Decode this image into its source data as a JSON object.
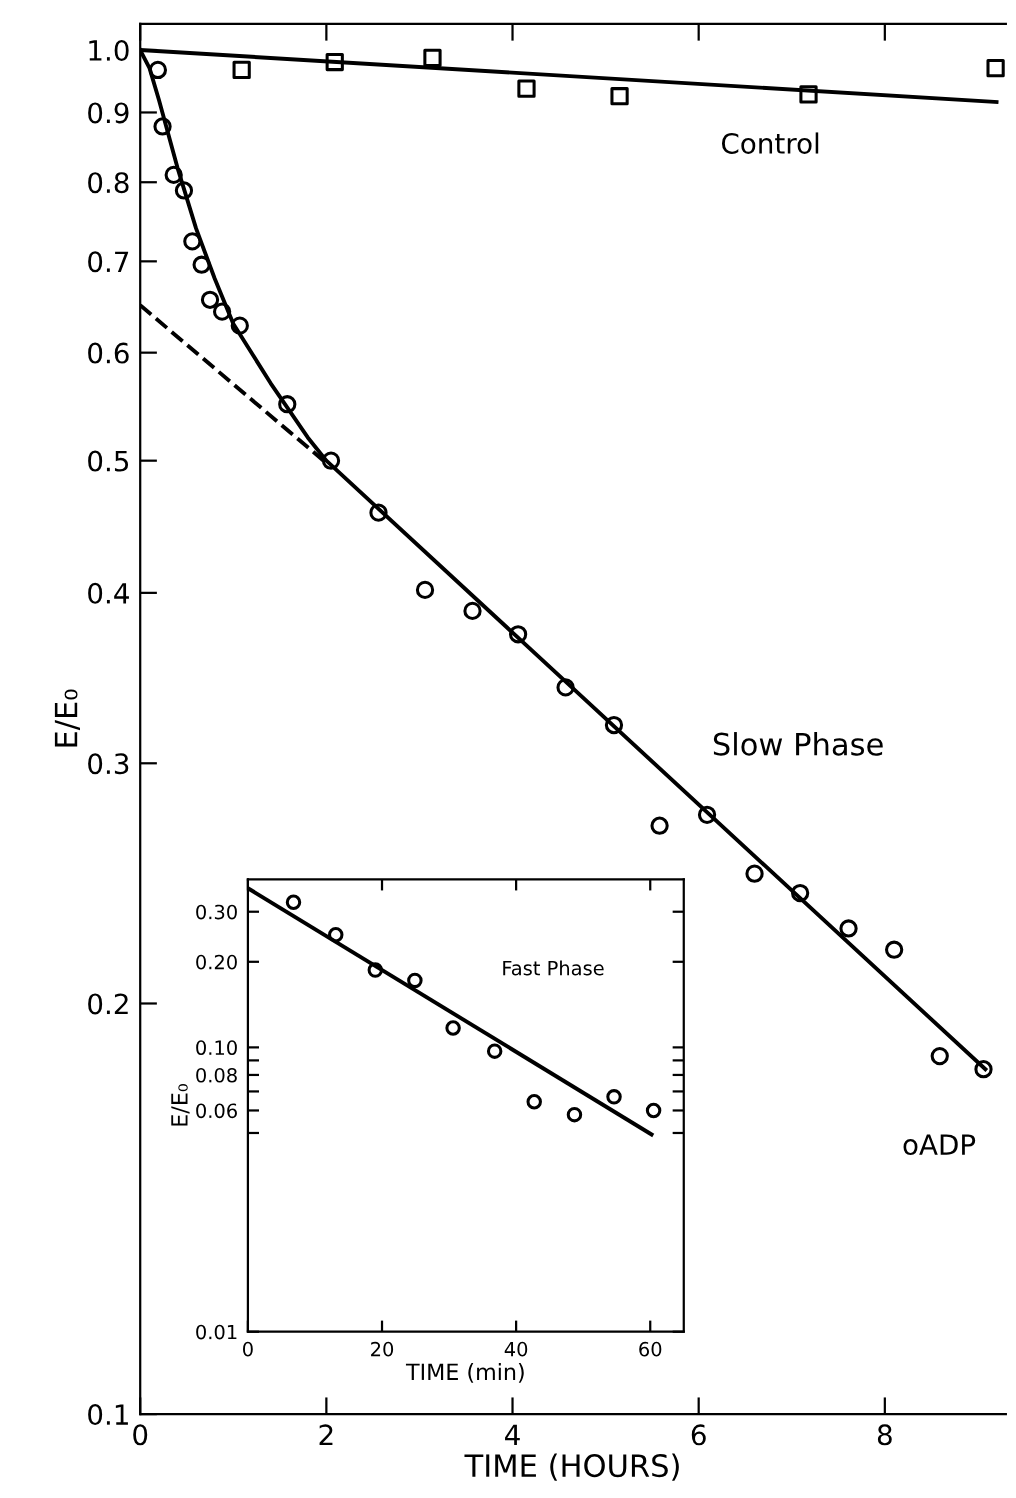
{
  "chart_data": [
    {
      "type": "scatter",
      "xlabel": "TIME (HOURS)",
      "ylabel": "E/E₀",
      "log": "y",
      "xlim": [
        0,
        9.3
      ],
      "ylim": [
        0.1,
        1.045
      ],
      "xticks": [
        0,
        2,
        4,
        6,
        8
      ],
      "yticks": [
        0.1,
        0.2,
        0.3,
        0.4,
        0.5,
        0.6,
        0.7,
        0.8,
        0.9,
        {
          "value": 1.0,
          "label": "1.0"
        }
      ],
      "grid": false,
      "annotations": [
        "Slow Phase"
      ],
      "series": [
        {
          "name": "Control",
          "marker": "square",
          "color": "#000000",
          "x": [
            1.09,
            2.09,
            3.14,
            4.15,
            5.15,
            7.18,
            9.19
          ],
          "values": [
            0.967,
            0.98,
            0.987,
            0.937,
            0.925,
            0.928,
            0.97
          ]
        },
        {
          "type": "line",
          "marker": "none",
          "line_style": "solid",
          "color": "#000000",
          "x": [
            0,
            9.2
          ],
          "values": [
            1.0,
            0.916
          ]
        },
        {
          "name": "oADP",
          "marker": "circle",
          "color": "#000000",
          "x": [
            0.19,
            0.24,
            0.36,
            0.47,
            0.56,
            0.66,
            0.75,
            0.88,
            1.07,
            1.58,
            2.05,
            2.56,
            3.06,
            3.57,
            4.06,
            4.57,
            5.09,
            5.58,
            6.09,
            6.6,
            7.09,
            7.61,
            8.1,
            8.59,
            9.06
          ],
          "values": [
            0.967,
            0.879,
            0.81,
            0.789,
            0.724,
            0.696,
            0.656,
            0.643,
            0.628,
            0.55,
            0.5,
            0.458,
            0.402,
            0.388,
            0.373,
            0.341,
            0.32,
            0.27,
            0.275,
            0.249,
            0.241,
            0.227,
            0.219,
            0.183,
            0.179
          ]
        },
        {
          "type": "line",
          "marker": "none",
          "line_style": "solid",
          "color": "#000000",
          "x": [
            0,
            0.1,
            0.2,
            0.4,
            0.6,
            0.8,
            1.0,
            1.4,
            1.8,
            2.0,
            9.08
          ],
          "values": [
            1.0,
            0.97,
            0.92,
            0.82,
            0.74,
            0.68,
            0.63,
            0.57,
            0.52,
            0.5,
            0.179
          ]
        },
        {
          "type": "line",
          "marker": "none",
          "line_style": "dashed",
          "color": "#000000",
          "x": [
            0,
            1.97
          ],
          "values": [
            0.65,
            0.5
          ]
        }
      ]
    },
    {
      "type": "scatter",
      "xlabel": "TIME (min)",
      "ylabel": "E/E₀",
      "log": "y",
      "xlim": [
        0,
        65
      ],
      "ylim": [
        0.01,
        0.39
      ],
      "xticks": [
        0,
        20,
        40,
        60
      ],
      "yticks": [
        {
          "value": 0.01,
          "label": "0.01"
        },
        {
          "value": 0.05,
          "label": null
        },
        {
          "value": 0.06,
          "label": "0.06"
        },
        {
          "value": 0.07,
          "label": null
        },
        {
          "value": 0.08,
          "label": "0.08"
        },
        {
          "value": 0.09,
          "label": null
        },
        {
          "value": 0.1,
          "label": "0.10"
        },
        {
          "value": 0.2,
          "label": "0.20"
        },
        {
          "value": 0.3,
          "label": "0.30"
        }
      ],
      "grid": false,
      "annotations": [
        "Fast Phase"
      ],
      "series": [
        {
          "marker": "circle",
          "color": "#000000",
          "x": [
            6.8,
            13.1,
            19.0,
            24.9,
            30.6,
            36.8,
            42.7,
            48.7,
            54.6,
            60.5
          ],
          "values": [
            0.324,
            0.249,
            0.187,
            0.172,
            0.117,
            0.097,
            0.0644,
            0.058,
            0.067,
            0.06
          ]
        },
        {
          "type": "line",
          "marker": "none",
          "line_style": "solid",
          "color": "#000000",
          "x": [
            0,
            60.2
          ],
          "values": [
            0.363,
            0.0494
          ]
        }
      ]
    }
  ]
}
